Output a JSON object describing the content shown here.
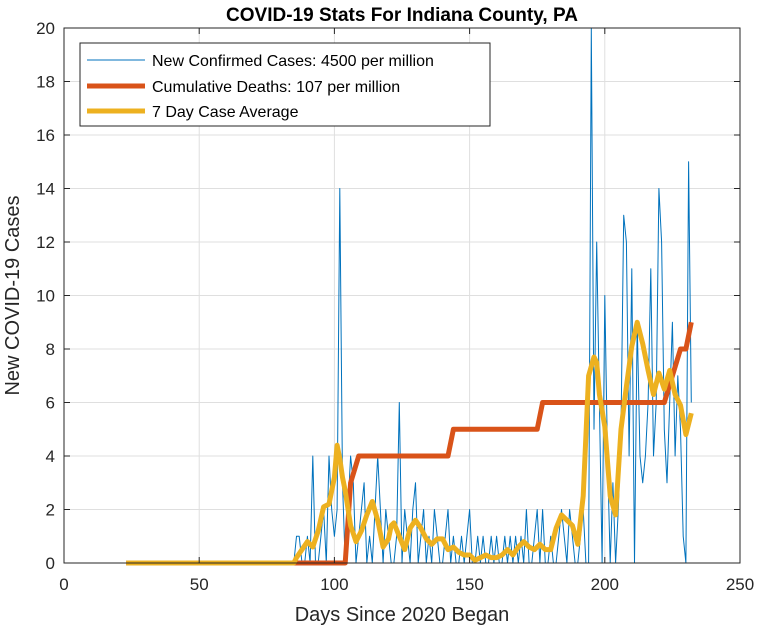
{
  "chart_data": {
    "type": "line",
    "title": "COVID-19 Stats For Indiana County, PA",
    "xlabel": "Days Since 2020 Began",
    "ylabel": "New COVID-19 Cases",
    "xlim": [
      0,
      250
    ],
    "ylim": [
      0,
      20
    ],
    "xticks": [
      0,
      50,
      100,
      150,
      200,
      250
    ],
    "yticks": [
      0,
      2,
      4,
      6,
      8,
      10,
      12,
      14,
      16,
      18,
      20
    ],
    "grid": true,
    "legend_position": "top-left",
    "series": [
      {
        "name": "New Confirmed Cases: 4500 per million",
        "color": "#0072BD",
        "width": 1,
        "x": [
          23,
          85,
          86,
          87,
          88,
          89,
          90,
          91,
          92,
          93,
          94,
          95,
          96,
          97,
          98,
          99,
          100,
          101,
          102,
          103,
          104,
          105,
          106,
          107,
          108,
          109,
          110,
          111,
          112,
          113,
          114,
          115,
          116,
          117,
          118,
          119,
          120,
          121,
          122,
          123,
          124,
          125,
          126,
          127,
          128,
          129,
          130,
          131,
          132,
          133,
          134,
          135,
          136,
          137,
          138,
          139,
          140,
          141,
          142,
          143,
          144,
          145,
          146,
          147,
          148,
          149,
          150,
          151,
          152,
          153,
          154,
          155,
          156,
          157,
          158,
          159,
          160,
          161,
          162,
          163,
          164,
          165,
          166,
          167,
          168,
          169,
          170,
          171,
          172,
          173,
          174,
          175,
          176,
          177,
          178,
          179,
          180,
          181,
          182,
          183,
          184,
          185,
          186,
          187,
          188,
          189,
          190,
          191,
          192,
          193,
          194,
          195,
          196,
          197,
          198,
          199,
          200,
          201,
          202,
          203,
          204,
          205,
          206,
          207,
          208,
          209,
          210,
          211,
          212,
          213,
          214,
          215,
          216,
          217,
          218,
          219,
          220,
          221,
          222,
          223,
          224,
          225,
          226,
          227,
          228,
          229,
          230,
          231,
          232
        ],
        "y": [
          0,
          0,
          1,
          1,
          0,
          0,
          1,
          0,
          4,
          0,
          0,
          1,
          2,
          0,
          4,
          2,
          1,
          2,
          14,
          3,
          0,
          2,
          4,
          3,
          0,
          1,
          2,
          3,
          0,
          1,
          0,
          2,
          4,
          2,
          0,
          2,
          1,
          0,
          0,
          1,
          6,
          0,
          2,
          1,
          0,
          2,
          3,
          0,
          1,
          2,
          0,
          1,
          0,
          2,
          1,
          0,
          0,
          1,
          2,
          0,
          1,
          0,
          0,
          1,
          0,
          1,
          2,
          0,
          0,
          1,
          0,
          1,
          0,
          0,
          1,
          0,
          1,
          0,
          0,
          1,
          0,
          1,
          0,
          1,
          0,
          1,
          0,
          2,
          0,
          0,
          1,
          2,
          0,
          2,
          0,
          0,
          1,
          0,
          0,
          1,
          2,
          1,
          0,
          2,
          1,
          0,
          0,
          1,
          2,
          0,
          0,
          20,
          5,
          12,
          6,
          0,
          10,
          4,
          0,
          3,
          0,
          2,
          5,
          13,
          12,
          4,
          11,
          0,
          9,
          4,
          3,
          4,
          6,
          11,
          4,
          6,
          14,
          12,
          5,
          3,
          6,
          9,
          4,
          7,
          5,
          1,
          0,
          15,
          6
        ]
      },
      {
        "name": "Cumulative Deaths: 107 per million",
        "color": "#D95319",
        "width": 5,
        "x": [
          23,
          104,
          106,
          109,
          142,
          144,
          175,
          177,
          222,
          225,
          228,
          230,
          232
        ],
        "y": [
          0,
          0,
          3,
          4,
          4,
          5,
          5,
          6,
          6,
          7,
          8,
          8,
          9
        ]
      },
      {
        "name": "7 Day Case Average",
        "color": "#EDB120",
        "width": 5,
        "x": [
          23,
          85,
          86,
          88,
          90,
          92,
          94,
          96,
          98,
          100,
          101,
          102,
          103,
          104,
          106,
          108,
          110,
          112,
          114,
          116,
          118,
          120,
          121,
          122,
          124,
          126,
          128,
          130,
          132,
          134,
          136,
          138,
          140,
          142,
          144,
          146,
          148,
          150,
          152,
          154,
          156,
          158,
          160,
          162,
          164,
          166,
          168,
          170,
          172,
          174,
          176,
          178,
          180,
          182,
          184,
          186,
          188,
          190,
          192,
          194,
          196,
          197,
          198,
          200,
          202,
          204,
          206,
          208,
          210,
          212,
          214,
          216,
          218,
          220,
          222,
          224,
          226,
          228,
          230,
          232
        ],
        "y": [
          0,
          0,
          0.2,
          0.5,
          0.8,
          0.6,
          1.2,
          2.1,
          2.2,
          3.2,
          4.4,
          3.9,
          3.2,
          2.7,
          1.4,
          0.8,
          1.2,
          1.8,
          2.3,
          1.6,
          0.6,
          0.9,
          1.4,
          1.5,
          1.0,
          0.5,
          1.3,
          1.6,
          1.3,
          0.9,
          0.7,
          0.9,
          0.9,
          0.5,
          0.6,
          0.4,
          0.3,
          0.3,
          0.1,
          0.2,
          0.3,
          0.2,
          0.2,
          0.3,
          0.5,
          0.3,
          0.6,
          0.8,
          0.6,
          0.5,
          0.7,
          0.5,
          0.5,
          1.3,
          1.8,
          1.6,
          1.4,
          0.7,
          2.5,
          7.0,
          7.7,
          7.5,
          6.3,
          5.1,
          2.5,
          1.8,
          5.0,
          6.6,
          8.1,
          9.0,
          8.2,
          7.2,
          6.3,
          7.1,
          6.5,
          7.2,
          6.3,
          5.9,
          4.8,
          5.6
        ]
      }
    ]
  }
}
